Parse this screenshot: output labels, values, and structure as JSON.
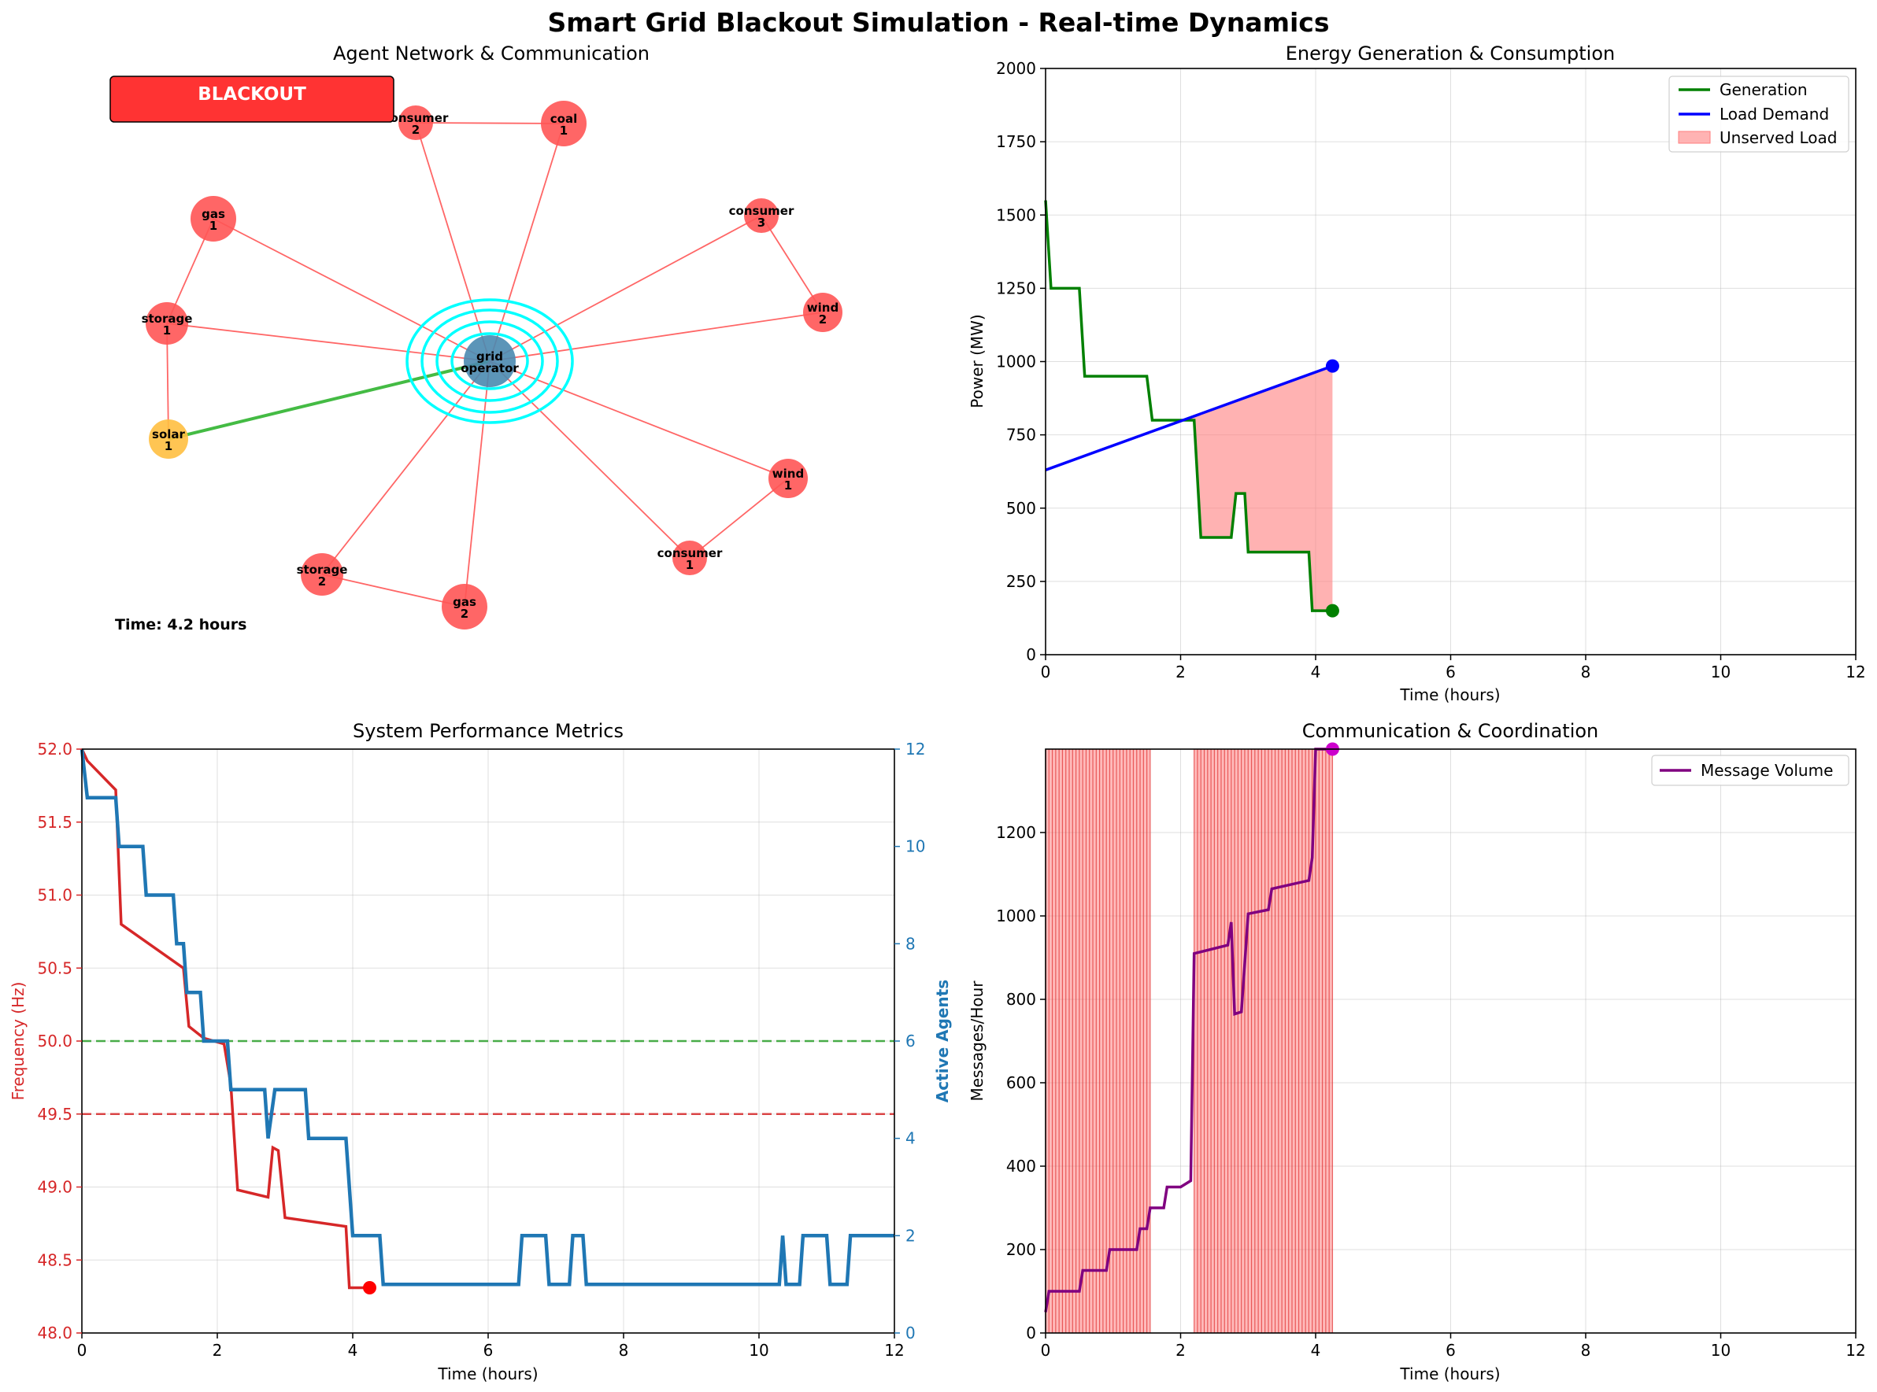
{
  "figure": {
    "title": "Smart Grid Blackout Simulation - Real-time Dynamics"
  },
  "colors": {
    "generation": "#008000",
    "load": "#0000ff",
    "unserved": "#ff7f7f",
    "frequency": "#d62728",
    "agents": "#1f77b4",
    "messages": "#800080",
    "failed_node": "#ff5555",
    "grid_operator": "#4a8ab0",
    "solar": "#ffbf40",
    "ring": "#00ffff",
    "active_link": "#44bb44",
    "failed_link": "#ff6666",
    "blackout_badge": "#ff3333"
  },
  "chart_data": [
    {
      "type": "network",
      "title": "Agent Network & Communication",
      "status_badge": "BLACKOUT",
      "time_text": "Time: 4.2 hours",
      "nodes": [
        {
          "id": "grid_operator",
          "label": [
            "grid",
            "operator"
          ],
          "status": "hub"
        },
        {
          "id": "consumer_2",
          "label": [
            "consumer",
            "2"
          ],
          "status": "failed"
        },
        {
          "id": "coal_1",
          "label": [
            "coal",
            "1"
          ],
          "status": "failed"
        },
        {
          "id": "gas_1",
          "label": [
            "gas",
            "1"
          ],
          "status": "failed"
        },
        {
          "id": "consumer_3",
          "label": [
            "consumer",
            "3"
          ],
          "status": "failed"
        },
        {
          "id": "storage_1",
          "label": [
            "storage",
            "1"
          ],
          "status": "failed"
        },
        {
          "id": "wind_2",
          "label": [
            "wind",
            "2"
          ],
          "status": "failed"
        },
        {
          "id": "solar_1",
          "label": [
            "solar",
            "1"
          ],
          "status": "active"
        },
        {
          "id": "wind_1",
          "label": [
            "wind",
            "1"
          ],
          "status": "failed"
        },
        {
          "id": "consumer_1",
          "label": [
            "consumer",
            "1"
          ],
          "status": "failed"
        },
        {
          "id": "storage_2",
          "label": [
            "storage",
            "2"
          ],
          "status": "failed"
        },
        {
          "id": "gas_2",
          "label": [
            "gas",
            "2"
          ],
          "status": "failed"
        }
      ],
      "edges": [
        [
          "grid_operator",
          "consumer_2"
        ],
        [
          "grid_operator",
          "coal_1"
        ],
        [
          "grid_operator",
          "gas_1"
        ],
        [
          "grid_operator",
          "consumer_3"
        ],
        [
          "grid_operator",
          "storage_1"
        ],
        [
          "grid_operator",
          "wind_2"
        ],
        [
          "grid_operator",
          "solar_1"
        ],
        [
          "grid_operator",
          "wind_1"
        ],
        [
          "grid_operator",
          "consumer_1"
        ],
        [
          "grid_operator",
          "storage_2"
        ],
        [
          "grid_operator",
          "gas_2"
        ],
        [
          "consumer_2",
          "coal_1"
        ],
        [
          "gas_1",
          "storage_1"
        ],
        [
          "storage_1",
          "solar_1"
        ],
        [
          "consumer_3",
          "wind_2"
        ],
        [
          "wind_1",
          "consumer_1"
        ],
        [
          "storage_2",
          "gas_2"
        ]
      ],
      "active_edges": [
        [
          "grid_operator",
          "solar_1"
        ]
      ]
    },
    {
      "type": "line",
      "title": "Energy Generation & Consumption",
      "xlabel": "Time (hours)",
      "ylabel": "Power (MW)",
      "xlim": [
        0,
        12
      ],
      "ylim": [
        0,
        2000
      ],
      "xticks": [
        0,
        2,
        4,
        6,
        8,
        10,
        12
      ],
      "yticks": [
        0,
        250,
        500,
        750,
        1000,
        1250,
        1500,
        1750,
        2000
      ],
      "legend": "upper right",
      "series": [
        {
          "name": "Generation",
          "x": [
            0,
            0.08,
            0.5,
            0.58,
            1.5,
            1.58,
            2.1,
            2.2,
            2.3,
            2.75,
            2.82,
            2.95,
            3.0,
            3.9,
            3.95,
            4.25
          ],
          "y": [
            1550,
            1250,
            1250,
            950,
            950,
            800,
            800,
            800,
            400,
            400,
            550,
            550,
            350,
            350,
            150,
            150
          ]
        },
        {
          "name": "Load Demand",
          "x": [
            0,
            4.25
          ],
          "y": [
            630,
            985
          ]
        },
        {
          "name": "Unserved Load",
          "fill_between": true
        }
      ]
    },
    {
      "type": "line",
      "title": "System Performance Metrics",
      "xlabel": "Time (hours)",
      "ylabel": "Frequency (Hz)",
      "ylabel2": "Active Agents",
      "xlim": [
        0,
        12
      ],
      "ylim": [
        48.0,
        52.0
      ],
      "ylim2": [
        0,
        12
      ],
      "xticks": [
        0,
        2,
        4,
        6,
        8,
        10,
        12
      ],
      "yticks": [
        "48.0",
        "48.5",
        "49.0",
        "49.5",
        "50.0",
        "50.5",
        "51.0",
        "51.5",
        "52.0"
      ],
      "yticks2": [
        0,
        2,
        4,
        6,
        8,
        10,
        12
      ],
      "hlines": [
        {
          "y": 50.0,
          "color": "#2ca02c"
        },
        {
          "y": 49.5,
          "color": "#d62728"
        }
      ],
      "series": [
        {
          "name": "Frequency",
          "x": [
            0,
            0.08,
            0.5,
            0.58,
            1.5,
            1.58,
            1.8,
            2.1,
            2.2,
            2.3,
            2.75,
            2.82,
            2.9,
            3.0,
            3.9,
            3.95,
            4.25
          ],
          "y": [
            52.0,
            51.92,
            51.72,
            50.8,
            50.5,
            50.1,
            50.02,
            49.98,
            49.7,
            48.98,
            48.93,
            49.27,
            49.25,
            48.79,
            48.73,
            48.31,
            48.31
          ]
        },
        {
          "name": "Active Agents",
          "x": [
            0,
            0.08,
            0.5,
            0.55,
            0.9,
            0.95,
            1.35,
            1.4,
            1.5,
            1.55,
            1.75,
            1.8,
            2.15,
            2.2,
            2.7,
            2.75,
            2.85,
            3.3,
            3.35,
            3.9,
            4.0,
            4.4,
            4.45,
            6.45,
            6.5,
            6.85,
            6.9,
            7.2,
            7.25,
            7.4,
            7.45,
            7.55,
            7.6,
            10.3,
            10.35,
            10.4,
            10.45,
            10.6,
            10.65,
            11.0,
            11.05,
            11.25,
            11.3,
            11.35,
            11.4,
            12
          ],
          "y": [
            12,
            11,
            11,
            10,
            10,
            9,
            9,
            8,
            8,
            7,
            7,
            6,
            6,
            5,
            5,
            4,
            5,
            5,
            4,
            4,
            2,
            2,
            1,
            1,
            2,
            2,
            1,
            1,
            2,
            2,
            1,
            1,
            1,
            1,
            2,
            1,
            1,
            1,
            2,
            2,
            1,
            1,
            1,
            2,
            2,
            2
          ]
        }
      ]
    },
    {
      "type": "line",
      "title": "Communication & Coordination",
      "xlabel": "Time (hours)",
      "ylabel": "Messages/Hour",
      "xlim": [
        0,
        12
      ],
      "ylim": [
        0,
        1400
      ],
      "xticks": [
        0,
        2,
        4,
        6,
        8,
        10,
        12
      ],
      "yticks": [
        0,
        200,
        400,
        600,
        800,
        1000,
        1200
      ],
      "legend": "upper right",
      "shaded_spans": [
        [
          0,
          1.55
        ],
        [
          2.2,
          4.25
        ]
      ],
      "series": [
        {
          "name": "Message Volume",
          "x": [
            0,
            0.05,
            0.5,
            0.55,
            0.9,
            0.95,
            1.35,
            1.4,
            1.5,
            1.55,
            1.75,
            1.8,
            2.0,
            2.15,
            2.2,
            2.7,
            2.75,
            2.8,
            2.9,
            3.0,
            3.3,
            3.35,
            3.9,
            3.95,
            4.0,
            4.25
          ],
          "y": [
            50,
            100,
            100,
            150,
            150,
            200,
            200,
            250,
            250,
            300,
            300,
            350,
            350,
            365,
            910,
            930,
            985,
            765,
            770,
            1005,
            1015,
            1065,
            1085,
            1140,
            1400,
            1400
          ]
        }
      ]
    }
  ]
}
